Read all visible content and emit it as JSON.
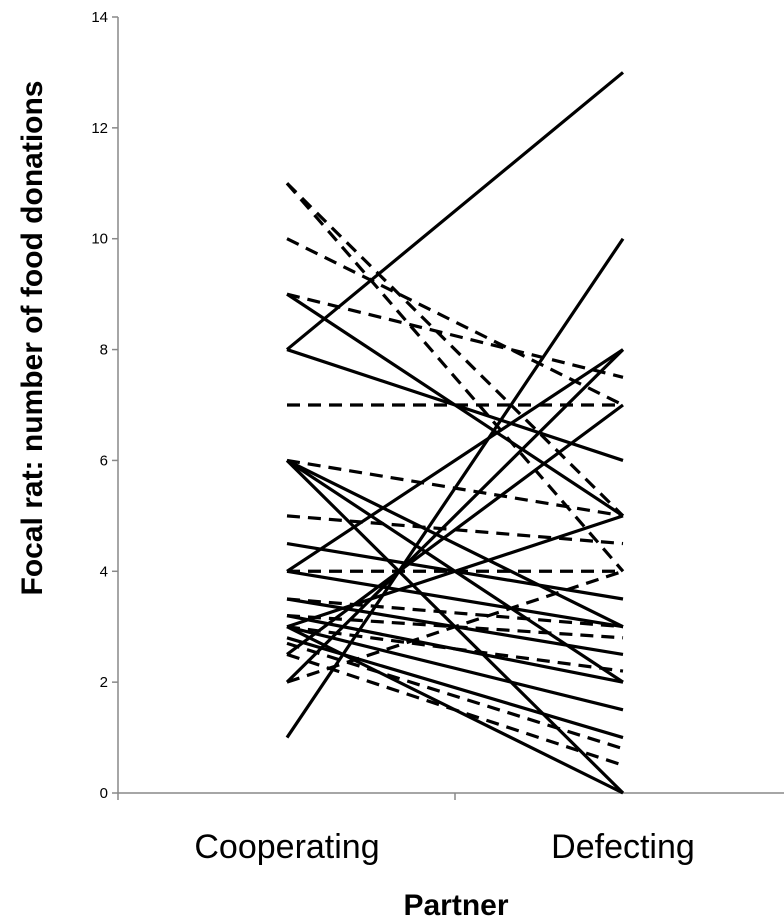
{
  "chart_data": {
    "type": "line",
    "title": "",
    "xlabel": "Partner",
    "ylabel": "Focal rat: number of food donations",
    "categories": [
      "Cooperating",
      "Defecting"
    ],
    "ylim": [
      0,
      14
    ],
    "yticks": [
      0,
      2,
      4,
      6,
      8,
      10,
      12,
      14
    ],
    "grid": false,
    "legend": "none",
    "line_color": "#000000",
    "series": [
      {
        "style": "solid",
        "values": [
          8,
          13
        ]
      },
      {
        "style": "solid",
        "values": [
          9,
          5
        ]
      },
      {
        "style": "solid",
        "values": [
          8,
          6
        ]
      },
      {
        "style": "solid",
        "values": [
          1,
          10
        ]
      },
      {
        "style": "solid",
        "values": [
          2,
          8
        ]
      },
      {
        "style": "solid",
        "values": [
          6,
          0
        ]
      },
      {
        "style": "solid",
        "values": [
          6,
          2
        ]
      },
      {
        "style": "solid",
        "values": [
          6,
          3
        ]
      },
      {
        "style": "solid",
        "values": [
          4,
          8
        ]
      },
      {
        "style": "solid",
        "values": [
          4.5,
          3.5
        ]
      },
      {
        "style": "solid",
        "values": [
          4,
          3
        ]
      },
      {
        "style": "solid",
        "values": [
          3,
          5
        ]
      },
      {
        "style": "solid",
        "values": [
          3.5,
          2.5
        ]
      },
      {
        "style": "solid",
        "values": [
          3.2,
          2
        ]
      },
      {
        "style": "solid",
        "values": [
          3,
          1.5
        ]
      },
      {
        "style": "solid",
        "values": [
          2.8,
          1
        ]
      },
      {
        "style": "solid",
        "values": [
          3,
          0
        ]
      },
      {
        "style": "solid",
        "values": [
          2.5,
          7
        ]
      },
      {
        "style": "dashed",
        "values": [
          11,
          5
        ]
      },
      {
        "style": "dashed",
        "values": [
          11,
          4
        ]
      },
      {
        "style": "dashed",
        "values": [
          10,
          7
        ]
      },
      {
        "style": "dashed",
        "values": [
          9,
          7.5
        ]
      },
      {
        "style": "dashed",
        "values": [
          7,
          7
        ]
      },
      {
        "style": "dashed",
        "values": [
          6,
          5
        ]
      },
      {
        "style": "dashed",
        "values": [
          5,
          4.5
        ]
      },
      {
        "style": "dashed",
        "values": [
          4,
          4
        ]
      },
      {
        "style": "dashed",
        "values": [
          3.5,
          3
        ]
      },
      {
        "style": "dashed",
        "values": [
          3,
          2.2
        ]
      },
      {
        "style": "dashed",
        "values": [
          2.5,
          0.5
        ]
      },
      {
        "style": "dashed",
        "values": [
          2,
          4
        ]
      },
      {
        "style": "dashed",
        "values": [
          3.2,
          2.8
        ]
      },
      {
        "style": "dashed",
        "values": [
          2.7,
          0.8
        ]
      }
    ]
  }
}
